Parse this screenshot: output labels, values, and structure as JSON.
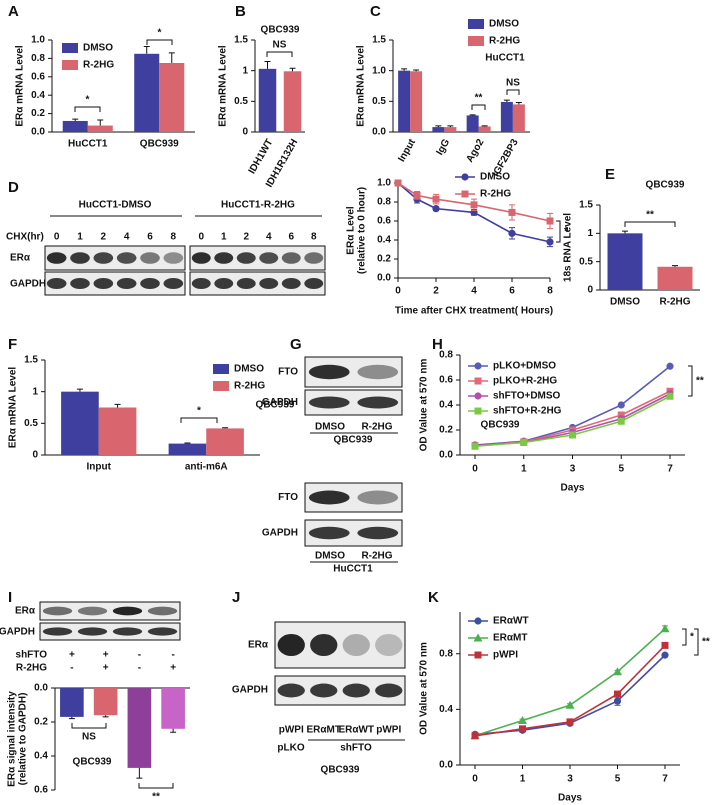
{
  "chart_data": [
    {
      "type": "bar",
      "panel": "A",
      "ylabel": "ERα mRNA Level",
      "categories": [
        "HuCCT1",
        "QBC939"
      ],
      "series": [
        {
          "name": "DMSO",
          "color": "#3f3f9f",
          "values": [
            0.12,
            0.85
          ],
          "errors": [
            0.02,
            0.08
          ]
        },
        {
          "name": "R-2HG",
          "color": "#d9666f",
          "values": [
            0.07,
            0.75
          ],
          "errors": [
            0.06,
            0.11
          ]
        }
      ],
      "ylim": [
        0,
        1
      ],
      "yticks": [
        {
          "value": 0,
          "label": "0.0"
        },
        0.2,
        0.4,
        0.6,
        0.8,
        {
          "value": 1,
          "label": "1.0"
        }
      ],
      "legend": "upper left",
      "annotations": [
        "*",
        "*"
      ]
    },
    {
      "type": "bar",
      "panel": "B",
      "subtitle": "QBC939",
      "ylabel": "ERα mRNA Level",
      "categories": [
        "IDH1WT",
        "IDH1R132H"
      ],
      "values": [
        1.03,
        0.99
      ],
      "errors": [
        0.12,
        0.05
      ],
      "colors": [
        "#3f3f9f",
        "#d9666f"
      ],
      "ylim": [
        0,
        1.5
      ],
      "yticks": [
        0,
        0.5,
        1,
        1.5
      ],
      "rotate_labels": true,
      "annotations": [
        "NS"
      ]
    },
    {
      "type": "bar",
      "panel": "C",
      "subtitle": "HuCCT1",
      "ylabel": "ERα mRNA Level",
      "categories": [
        "Input",
        "IgG",
        "Ago2",
        "IGF2BP3"
      ],
      "series": [
        {
          "name": "DMSO",
          "color": "#3f3f9f",
          "values": [
            1.0,
            0.08,
            0.27,
            0.49
          ],
          "errors": [
            0.03,
            0.02,
            0.01,
            0.03
          ]
        },
        {
          "name": "R-2HG",
          "color": "#d9666f",
          "values": [
            0.99,
            0.08,
            0.09,
            0.45
          ],
          "errors": [
            0.02,
            0.02,
            0.01,
            0.03
          ]
        }
      ],
      "ylim": [
        0,
        1.5
      ],
      "yticks": [
        {
          "value": 0,
          "label": "0.0"
        },
        0.5,
        {
          "value": 1,
          "label": "1.0"
        },
        1.5
      ],
      "rotate_labels": true,
      "legend": "upper right",
      "annotations": [
        "**",
        "NS"
      ]
    },
    {
      "type": "line",
      "ylabel": [
        "ERα  Level",
        "(relative to 0 hour)"
      ],
      "xlabel": "Time after CHX treatment( Hours)",
      "x": [
        0,
        1,
        2,
        4,
        6,
        8
      ],
      "xlim": [
        0,
        8
      ],
      "xticks": [
        0,
        2,
        4,
        6,
        8
      ],
      "series": [
        {
          "name": "DMSO",
          "color": "#3f3f9f",
          "marker": "circle",
          "values": [
            1,
            0.83,
            0.73,
            0.69,
            0.47,
            0.38
          ],
          "errors": [
            0,
            0.04,
            0.02,
            0.03,
            0.06,
            0.05
          ]
        },
        {
          "name": "R-2HG",
          "color": "#d9666f",
          "marker": "square",
          "values": [
            1,
            0.87,
            0.83,
            0.77,
            0.69,
            0.6
          ],
          "errors": [
            0,
            0.04,
            0.05,
            0.06,
            0.08,
            0.08
          ]
        }
      ],
      "ylim": [
        0,
        1
      ],
      "yticks": [
        {
          "value": 0,
          "label": "0.0"
        },
        0.2,
        0.4,
        0.6,
        0.8,
        {
          "value": 1,
          "label": "1.0"
        }
      ],
      "legend": "upper right",
      "annotations": [
        "*"
      ]
    },
    {
      "type": "bar",
      "panel": "E",
      "subtitle": "QBC939",
      "ylabel": "18s RNA Level",
      "categories": [
        "DMSO",
        "R-2HG"
      ],
      "values": [
        1.0,
        0.41
      ],
      "errors": [
        0.04,
        0.02
      ],
      "colors": [
        "#3f3f9f",
        "#d9666f"
      ],
      "ylim": [
        0,
        1.5
      ],
      "yticks": [
        0,
        0.5,
        1,
        1.5
      ],
      "annotations": [
        "**"
      ]
    },
    {
      "type": "bar",
      "panel": "F",
      "subtitle": "QBC939",
      "ylabel": "ERα mRNA Level",
      "categories": [
        "Input",
        "anti-m6A"
      ],
      "series": [
        {
          "name": "DMSO",
          "color": "#3f3f9f",
          "values": [
            1.0,
            0.18
          ],
          "errors": [
            0.04,
            0.01
          ]
        },
        {
          "name": "R-2HG",
          "color": "#d9666f",
          "values": [
            0.75,
            0.42
          ],
          "errors": [
            0.05,
            0.01
          ]
        }
      ],
      "ylim": [
        0,
        1.5
      ],
      "yticks": [
        0,
        0.5,
        1,
        1.5
      ],
      "legend": "upper right",
      "annotations": [
        "*"
      ]
    },
    {
      "type": "line",
      "panel": "H",
      "subtitle": "QBC939",
      "ylabel": "OD Value at 570 nm",
      "xlabel": "Days",
      "categories": [
        "0",
        "1",
        "3",
        "5",
        "7"
      ],
      "series": [
        {
          "name": "pLKO+DMSO",
          "color": "#5a5ab8",
          "marker": "circle",
          "values": [
            0.08,
            0.11,
            0.22,
            0.4,
            0.71
          ]
        },
        {
          "name": "pLKO+R-2HG",
          "color": "#e06a7a",
          "marker": "square",
          "values": [
            0.075,
            0.105,
            0.2,
            0.32,
            0.51
          ]
        },
        {
          "name": "shFTO+DMSO",
          "color": "#b050b0",
          "marker": "circle",
          "values": [
            0.075,
            0.1,
            0.18,
            0.29,
            0.49
          ]
        },
        {
          "name": "shFTO+R-2HG",
          "color": "#7ac943",
          "marker": "square",
          "values": [
            0.07,
            0.1,
            0.16,
            0.27,
            0.47
          ]
        }
      ],
      "ylim": [
        0,
        0.8
      ],
      "yticks": [
        {
          "value": 0,
          "label": "0.0"
        },
        0.2,
        0.4,
        0.6,
        0.8
      ],
      "legend": "upper left",
      "annotations": [
        "**"
      ]
    },
    {
      "type": "bar",
      "panel": "I",
      "subtitle": "QBC939",
      "ylabel": [
        "ERα signal intensity",
        "(relative to GAPDH)"
      ],
      "values": [
        0.17,
        0.16,
        0.47,
        0.24
      ],
      "errors": [
        0.01,
        0.01,
        0.06,
        0.02
      ],
      "colors": [
        "#3f3f9f",
        "#d9666f",
        "#8e3f99",
        "#c864c8"
      ],
      "ylim": [
        0,
        0.6
      ],
      "yticks": [
        {
          "value": 0,
          "label": "0.0"
        },
        0.2,
        0.4,
        0.6
      ],
      "inverted": true,
      "conditions": [
        {
          "label": "shFTO",
          "signs": [
            "+",
            "+",
            "-",
            "-"
          ]
        },
        {
          "label": "R-2HG",
          "signs": [
            "-",
            "+",
            "-",
            "+"
          ]
        }
      ],
      "annotations": [
        "NS",
        "**"
      ]
    },
    {
      "type": "line",
      "panel": "K",
      "ylabel": "OD Value at 570 nm",
      "xlabel": "Days",
      "categories": [
        "0",
        "1",
        "3",
        "5",
        "7"
      ],
      "series": [
        {
          "name": "ERαWT",
          "color": "#3f4fa0",
          "marker": "circle",
          "values": [
            0.22,
            0.25,
            0.3,
            0.46,
            0.79
          ],
          "errors": [
            0.01,
            0.01,
            0.01,
            0.03,
            0.01
          ]
        },
        {
          "name": "ERαMT",
          "color": "#4caf50",
          "marker": "triangle",
          "values": [
            0.21,
            0.32,
            0.43,
            0.67,
            0.98
          ],
          "errors": [
            0.01,
            0.01,
            0.01,
            0.01,
            0.02
          ]
        },
        {
          "name": "pWPI",
          "color": "#c0303a",
          "marker": "square",
          "values": [
            0.21,
            0.26,
            0.31,
            0.51,
            0.86
          ],
          "errors": [
            0.01,
            0.01,
            0.01,
            0.01,
            0.01
          ]
        }
      ],
      "ylim": [
        0,
        1.1
      ],
      "yticks": [
        {
          "value": 0,
          "label": "0.0"
        },
        0.4,
        0.8
      ],
      "legend": "upper left",
      "annotations": [
        "*",
        "**"
      ]
    }
  ],
  "blots": [
    {
      "panel": "D",
      "groups": [
        "HuCCT1-DMSO",
        "HuCCT1-R-2HG"
      ],
      "lane_title": "CHX(hr)",
      "lanes": [
        "0",
        "1",
        "2",
        "4",
        "6",
        "8",
        "0",
        "1",
        "2",
        "4",
        "6",
        "8"
      ],
      "rows": [
        "ERα",
        "GAPDH"
      ]
    },
    {
      "panel": "G",
      "blocks": [
        {
          "rows": [
            "FTO",
            "GAPDH"
          ],
          "lanes": [
            "DMSO",
            "R-2HG"
          ],
          "cell": "QBC939"
        },
        {
          "rows": [
            "FTO",
            "GAPDH"
          ],
          "lanes": [
            "DMSO",
            "R-2HG"
          ],
          "cell": "HuCCT1"
        }
      ]
    },
    {
      "rows": [
        "ERα",
        "GAPDH"
      ]
    },
    {
      "panel": "J",
      "rows": [
        "ERα",
        "GAPDH"
      ],
      "lanes": [
        "pWPI",
        "ERαMT",
        "ERαWT",
        "pWPI"
      ],
      "groups": [
        "pLKO",
        "shFTO"
      ],
      "cell": "QBC939"
    }
  ]
}
